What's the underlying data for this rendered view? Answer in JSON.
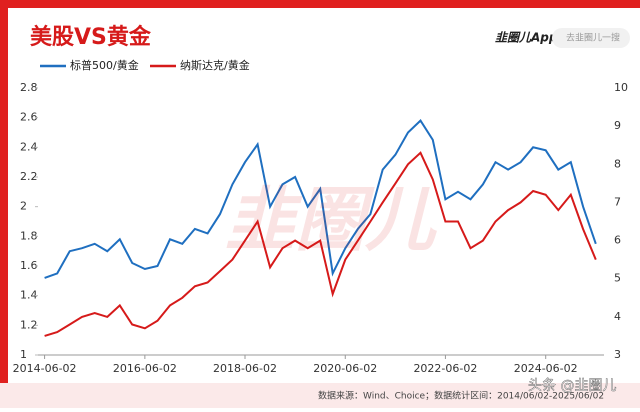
{
  "header": {
    "title": "美股VS黄金",
    "logo": "韭圈儿App",
    "search": "去韭圈儿一搜"
  },
  "chart_data": {
    "type": "line",
    "dual_axis": true,
    "x": [
      "2014-06-02",
      "2014-09-02",
      "2014-12-02",
      "2015-03-02",
      "2015-06-02",
      "2015-09-02",
      "2015-12-02",
      "2016-03-02",
      "2016-06-02",
      "2016-09-02",
      "2016-12-02",
      "2017-03-02",
      "2017-06-02",
      "2017-09-02",
      "2017-12-02",
      "2018-03-02",
      "2018-06-02",
      "2018-09-02",
      "2018-12-02",
      "2019-03-02",
      "2019-06-02",
      "2019-09-02",
      "2019-12-02",
      "2020-03-02",
      "2020-06-02",
      "2020-09-02",
      "2020-12-02",
      "2021-03-02",
      "2021-06-02",
      "2021-09-02",
      "2021-12-02",
      "2022-03-02",
      "2022-06-02",
      "2022-09-02",
      "2022-12-02",
      "2023-03-02",
      "2023-06-02",
      "2023-09-02",
      "2023-12-02",
      "2024-03-02",
      "2024-06-02",
      "2024-09-02",
      "2024-12-02",
      "2025-03-02",
      "2025-06-02"
    ],
    "series": [
      {
        "name": "标普500/黄金",
        "color": "#1f6fc0",
        "values": [
          1.52,
          1.55,
          1.7,
          1.72,
          1.75,
          1.7,
          1.78,
          1.62,
          1.58,
          1.6,
          1.78,
          1.75,
          1.85,
          1.82,
          1.95,
          2.15,
          2.3,
          2.42,
          2.0,
          2.15,
          2.2,
          2.0,
          2.12,
          1.55,
          1.72,
          1.85,
          1.95,
          2.25,
          2.35,
          2.5,
          2.58,
          2.45,
          2.05,
          2.1,
          2.05,
          2.15,
          2.3,
          2.25,
          2.3,
          2.4,
          2.38,
          2.25,
          2.3,
          2.0,
          1.75
        ]
      },
      {
        "name": "纳斯达克/黄金",
        "color": "#d61a1a",
        "axis": "y2",
        "values": [
          3.5,
          3.6,
          3.8,
          4.0,
          4.1,
          4.0,
          4.3,
          3.8,
          3.7,
          3.9,
          4.3,
          4.5,
          4.8,
          4.9,
          5.2,
          5.5,
          6.0,
          6.5,
          5.3,
          5.8,
          6.0,
          5.8,
          6.0,
          4.6,
          5.5,
          6.0,
          6.5,
          7.0,
          7.5,
          8.0,
          8.3,
          7.6,
          6.5,
          6.5,
          5.8,
          6.0,
          6.5,
          6.8,
          7.0,
          7.3,
          7.2,
          6.8,
          7.2,
          6.3,
          5.5
        ]
      }
    ],
    "xlim": [
      "2014-04-15",
      "2025-08-01"
    ],
    "xticks": [
      "2014-06-02",
      "2016-06-02",
      "2018-06-02",
      "2020-06-02",
      "2022-06-02",
      "2024-06-02"
    ],
    "ylim": [
      1,
      2.8
    ],
    "yticks": [
      1,
      1.2,
      1.4,
      1.6,
      1.8,
      2,
      2.2,
      2.4,
      2.6,
      2.8
    ],
    "y2lim": [
      3,
      10
    ],
    "y2ticks": [
      3,
      4,
      5,
      6,
      7,
      8,
      9,
      10
    ],
    "watermark": "韭圈儿"
  },
  "footer": {
    "source": "数据来源：Wind、Choice；数据统计区间：2014/06/02-2025/06/02",
    "credit": "头条 @韭圈儿"
  }
}
